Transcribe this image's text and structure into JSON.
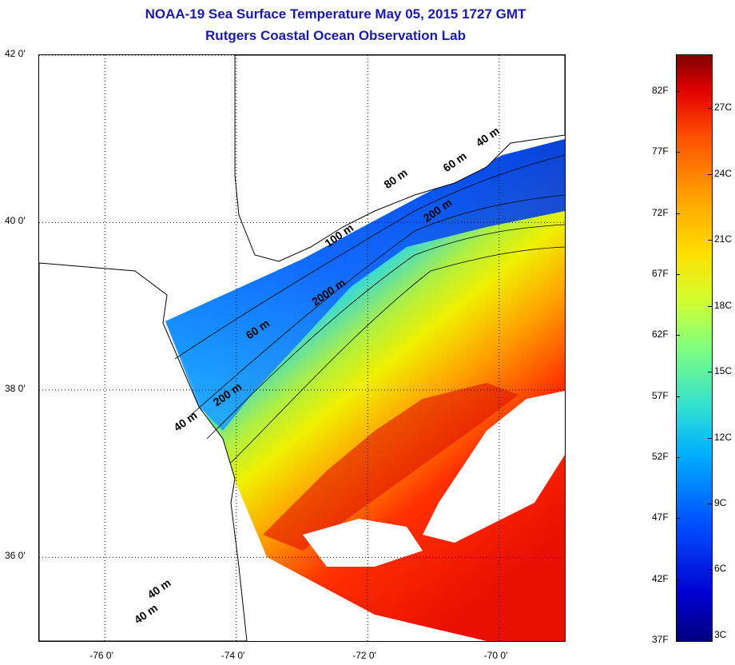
{
  "title": "NOAA-19 Sea Surface Temperature May 05, 2015 1727 GMT",
  "subtitle": "Rutgers Coastal Ocean Observation Lab",
  "map": {
    "lon_range": [
      -77,
      -69
    ],
    "lat_range": [
      35,
      42
    ],
    "lon_ticks": [
      {
        "value": -76,
        "label": "-76 0'"
      },
      {
        "value": -74,
        "label": "-74 0'"
      },
      {
        "value": -72,
        "label": "-72 0'"
      },
      {
        "value": -70,
        "label": "-70 0'"
      }
    ],
    "lat_ticks": [
      {
        "value": 42,
        "label": "42 0'"
      },
      {
        "value": 40,
        "label": "40 0'"
      },
      {
        "value": 38,
        "label": "38 0'"
      },
      {
        "value": 36,
        "label": "36 0'"
      }
    ],
    "isobath_labels": [
      {
        "text": "40 m",
        "lon": -70.3,
        "lat": 40.9
      },
      {
        "text": "60 m",
        "lon": -70.8,
        "lat": 40.6
      },
      {
        "text": "80 m",
        "lon": -71.7,
        "lat": 40.4
      },
      {
        "text": "200 m",
        "lon": -71.1,
        "lat": 40.0
      },
      {
        "text": "100 m",
        "lon": -72.6,
        "lat": 39.7
      },
      {
        "text": "2000 m",
        "lon": -72.8,
        "lat": 39.0
      },
      {
        "text": "60 m",
        "lon": -73.8,
        "lat": 38.6
      },
      {
        "text": "200 m",
        "lon": -74.3,
        "lat": 37.8
      },
      {
        "text": "40 m",
        "lon": -74.9,
        "lat": 37.5
      },
      {
        "text": "40 m",
        "lon": -75.3,
        "lat": 35.5
      },
      {
        "text": "40 m",
        "lon": -75.5,
        "lat": 35.2
      }
    ]
  },
  "colorbar": {
    "range_f": [
      37,
      85
    ],
    "f_labels": [
      {
        "value": 82,
        "label": "82F"
      },
      {
        "value": 77,
        "label": "77F"
      },
      {
        "value": 72,
        "label": "72F"
      },
      {
        "value": 67,
        "label": "67F"
      },
      {
        "value": 62,
        "label": "62F"
      },
      {
        "value": 57,
        "label": "57F"
      },
      {
        "value": 52,
        "label": "52F"
      },
      {
        "value": 47,
        "label": "47F"
      },
      {
        "value": 42,
        "label": "42F"
      },
      {
        "value": 37,
        "label": "37F"
      }
    ],
    "c_labels": [
      {
        "value": 27,
        "label": "27C"
      },
      {
        "value": 24,
        "label": "24C"
      },
      {
        "value": 21,
        "label": "21C"
      },
      {
        "value": 18,
        "label": "18C"
      },
      {
        "value": 15,
        "label": "15C"
      },
      {
        "value": 12,
        "label": "12C"
      },
      {
        "value": 9,
        "label": "9C"
      },
      {
        "value": 6,
        "label": "6C"
      },
      {
        "value": 3,
        "label": "3C"
      }
    ]
  }
}
